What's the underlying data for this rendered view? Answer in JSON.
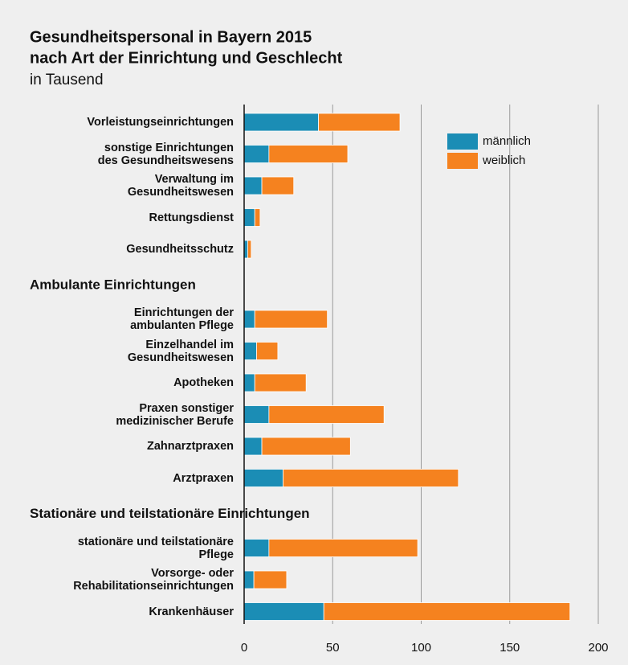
{
  "chart_data": {
    "type": "stacked-barh",
    "title": "Gesundheitspersonal in Bayern 2015",
    "title2": "nach Art der Einrichtung und Geschlecht",
    "subtitle": "in Tausend",
    "series": [
      {
        "name": "männlich",
        "color": "#1b8db5"
      },
      {
        "name": "weiblich",
        "color": "#f5821f"
      }
    ],
    "groups": [
      {
        "categories": [
          "Vorleistungseinrichtungen",
          "sonstige Einrichtungen\ndes Gesundheitswesens",
          "Verwaltung im\nGesundheitswesen",
          "Rettungsdienst",
          "Gesundheitsschutz"
        ],
        "values": [
          [
            42,
            14,
            10,
            6,
            2
          ],
          [
            46,
            44.5,
            18,
            3,
            2
          ]
        ]
      },
      {
        "name": "Ambulante Einrichtungen",
        "categories": [
          "Einrichtungen der\nambulanten Pflege",
          "Einzelhandel im\nGesundheitswesen",
          "Apotheken",
          "Praxen sonstiger\nmedizinischer Berufe",
          "Zahnarztpraxen",
          "Arztpraxen"
        ],
        "values": [
          [
            6,
            7,
            6,
            14,
            10,
            22
          ],
          [
            41,
            12,
            29,
            65,
            50,
            99
          ]
        ]
      },
      {
        "name": "Stationäre und teilstationäre Einrichtungen",
        "categories": [
          "stationäre und teilstationäre\nPflege",
          "Vorsorge- oder\nRehabilitationseinrichtungen",
          "Krankenhäuser"
        ],
        "values": [
          [
            14,
            5.5,
            45
          ],
          [
            84,
            18.5,
            139
          ]
        ]
      }
    ],
    "xlim": [
      0,
      200
    ],
    "xticks": [
      0,
      50,
      100,
      150,
      200
    ],
    "grid": true,
    "legend": "upper right"
  }
}
